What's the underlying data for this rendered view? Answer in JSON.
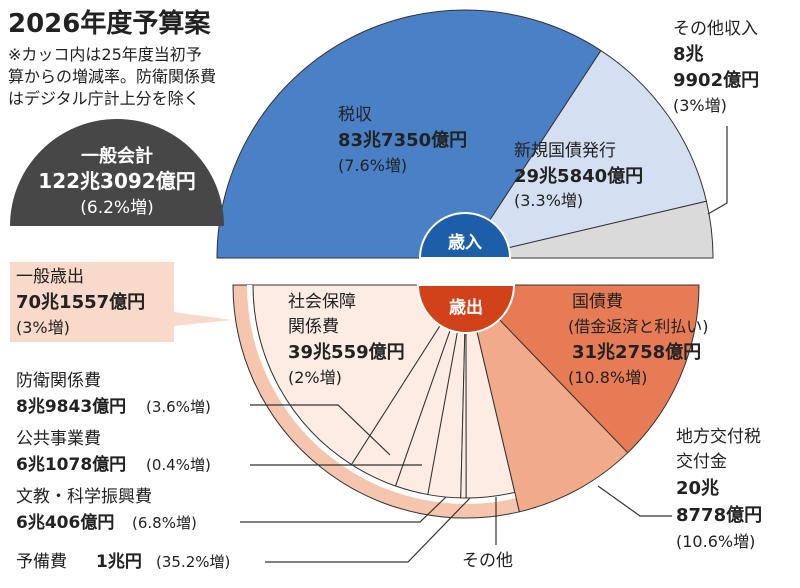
{
  "title": "2026年度予算案",
  "note": [
    "※カッコ内は25年度当初予",
    "算からの増減率。防衛関係費",
    "はデジタル庁計上分を除く"
  ],
  "general_account": {
    "label": "一般会計",
    "amount": "122兆3092億円",
    "change": "(6.2%増)"
  },
  "general_expenditure": {
    "label": "一般歳出",
    "amount": "70兆1557億円",
    "change": "(3%増)"
  },
  "revenue_badge": "歳入",
  "expenditure_badge": "歳出",
  "revenue": {
    "tax": {
      "label": "税収",
      "amount": "83兆7350億円",
      "change": "(7.6%増)"
    },
    "bonds": {
      "label": "新規国債発行",
      "amount": "29兆5840億円",
      "change": "(3.3%増)"
    },
    "other": {
      "label": "その他収入",
      "amount1": "8兆",
      "amount2": "9902億円",
      "change": "(3%増)"
    }
  },
  "expenditure": {
    "social": {
      "label1": "社会保障",
      "label2": "関係費",
      "amount": "39兆559億円",
      "change": "(2%増)"
    },
    "debt": {
      "label": "国債費",
      "sub": "(借金返済と利払い)",
      "amount": "31兆2758億円",
      "change": "(10.8%増)"
    },
    "local": {
      "label1": "地方交付税",
      "label2": "交付金",
      "amount1": "20兆",
      "amount2": "8778億円",
      "change": "(10.6%増)"
    },
    "defense": {
      "label": "防衛関係費",
      "amount": "8兆9843億円",
      "change": "(3.6%増)"
    },
    "public_works": {
      "label": "公共事業費",
      "amount": "6兆1078億円",
      "change": "(0.4%増)"
    },
    "education": {
      "label": "文教・科学振興費",
      "amount": "6兆406億円",
      "change": "(6.8%増)"
    },
    "reserve": {
      "label": "予備費",
      "amount": "1兆円",
      "change": "(35.2%増)"
    },
    "other": {
      "label": "その他"
    }
  },
  "chart_data": [
    {
      "type": "pie",
      "title": "歳入",
      "unit": "億円",
      "categories": [
        "税収",
        "新規国債発行",
        "その他収入"
      ],
      "values": [
        837350,
        295840,
        89902
      ],
      "colors": [
        "#4a80c6",
        "#d4e0f1",
        "#dadada"
      ]
    },
    {
      "type": "pie",
      "title": "歳出",
      "unit": "億円",
      "categories": [
        "社会保障関係費",
        "防衛関係費",
        "公共事業費",
        "文教・科学振興費",
        "予備費",
        "その他",
        "地方交付税交付金",
        "国債費"
      ],
      "values": [
        390559,
        89843,
        61078,
        60406,
        10000,
        89670,
        208778,
        312758
      ],
      "general_expenditure_total": 701557,
      "colors": [
        "#fcece4",
        "#fcece4",
        "#fcece4",
        "#fcece4",
        "#fcece4",
        "#fcece4",
        "#f2ab8a",
        "#e67b56"
      ]
    }
  ]
}
